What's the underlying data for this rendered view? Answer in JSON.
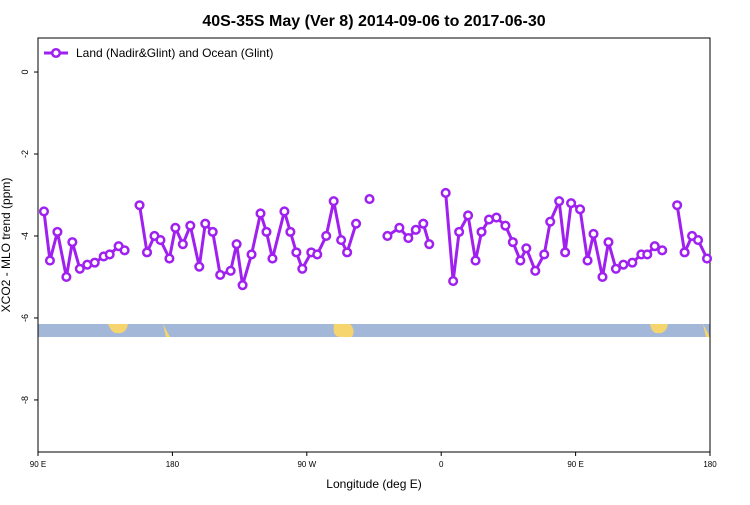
{
  "chart_data": {
    "type": "line",
    "title": "40S-35S May (Ver 8)   2014-09-06 to 2017-06-30",
    "x_label": "Longitude (deg E)",
    "y_label": "XCO2 - MLO trend (ppm)",
    "x": [
      94,
      98,
      103,
      109,
      113,
      118,
      123,
      128,
      134,
      138,
      144,
      148,
      153,
      158,
      163,
      168,
      172,
      178,
      182,
      187,
      192,
      198,
      202,
      207,
      212,
      219,
      223,
      227,
      233,
      239,
      243,
      247,
      255,
      259,
      263,
      267,
      273,
      277,
      283,
      288,
      293,
      297,
      303,
      308,
      312,
      318,
      324,
      332,
      338,
      343,
      348,
      352,
      358,
      363,
      368,
      372,
      378,
      383,
      387,
      392,
      397,
      403,
      408,
      413,
      417,
      423,
      429,
      433,
      439,
      443,
      447,
      453,
      458,
      462,
      468,
      472,
      477,
      482,
      488,
      494,
      498,
      503,
      508,
      513,
      518,
      523,
      528,
      532,
      538
    ],
    "series": [
      {
        "name": "Land (Nadir&Glint) and Ocean (Glint)",
        "color": "#a020f0",
        "values": [
          -3.4,
          -4.6,
          -3.9,
          -5.0,
          -4.15,
          -4.8,
          -4.7,
          -4.65,
          -4.5,
          -4.45,
          -4.25,
          -4.35,
          null,
          -3.25,
          -4.4,
          -4.0,
          -4.1,
          -4.55,
          -3.8,
          -4.2,
          -3.75,
          -4.75,
          -3.7,
          -3.9,
          -4.95,
          -4.85,
          -4.2,
          -5.2,
          -4.45,
          -3.45,
          -3.9,
          -4.55,
          -3.4,
          -3.9,
          -4.4,
          -4.8,
          -4.4,
          -4.45,
          -4.0,
          -3.15,
          -4.1,
          -4.4,
          -3.7,
          null,
          -3.1,
          null,
          -4.0,
          -3.8,
          -4.05,
          -3.85,
          -3.7,
          -4.2,
          null,
          -2.95,
          -5.1,
          -3.9,
          -3.5,
          -4.6,
          -3.9,
          -3.6,
          -3.55,
          -3.75,
          -4.15,
          -4.6,
          -4.3,
          -4.85,
          -4.45,
          -3.65,
          -3.15,
          -4.4,
          -3.2,
          -3.35,
          -4.6,
          -3.95,
          -5.0,
          -4.15,
          -4.8,
          -4.7,
          -4.65,
          -4.45,
          -4.45,
          -4.25,
          -4.35,
          null,
          -3.25,
          -4.4,
          -4.0,
          -4.1,
          -4.55
        ]
      }
    ],
    "xlim": [
      90,
      540
    ],
    "xticks": [
      {
        "value": 90,
        "label": "90 E"
      },
      180,
      {
        "value": 270,
        "label": "90 W"
      },
      {
        "value": 360,
        "label": "0"
      },
      {
        "value": 450,
        "label": "90 E"
      },
      {
        "value": 540,
        "label": "180"
      }
    ],
    "ylim": [
      -9.27,
      0.83
    ],
    "yticks": [
      0,
      -2,
      -4,
      -6,
      -8
    ],
    "legend": "top-left"
  }
}
